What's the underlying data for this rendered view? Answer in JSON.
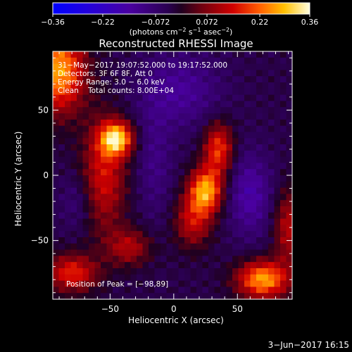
{
  "chart_data": {
    "type": "heatmap",
    "title": "Reconstructed RHESSI Image",
    "xlabel": "Heliocentric X (arcsec)",
    "ylabel": "Heliocentric Y (arcsec)",
    "xlim": [
      -95,
      93
    ],
    "ylim": [
      -95,
      95
    ],
    "x_ticks": [
      -50,
      0,
      50
    ],
    "y_ticks": [
      -50,
      0,
      50
    ],
    "x_tick_labels": [
      "−50",
      "0",
      "50"
    ],
    "y_tick_labels": [
      "−50",
      "0",
      "50"
    ],
    "colorbar": {
      "min": -0.36,
      "max": 0.36,
      "ticks": [
        -0.36,
        -0.22,
        -0.072,
        0.072,
        0.22,
        0.36
      ],
      "tick_labels": [
        "−0.36",
        "−0.22",
        "−0.072",
        "0.072",
        "0.22",
        "0.36"
      ],
      "units_prefix": "(photons cm",
      "units_sup1": "−2",
      "units_mid1": " s",
      "units_sup2": "−1",
      "units_mid2": " asec",
      "units_sup3": "−2",
      "units_suffix": ")"
    },
    "annotations": {
      "time_range": "31−May−2017 19:07:52.000 to 19:17:52.000",
      "detectors": "Detectors: 3F 6F 8F, Att 0",
      "energy": "Energy Range: 3.0 − 6.0 keV",
      "method": "Clean",
      "counts": "Total counts: 8.00E+04",
      "peak": "Position of Peak = [−98,89]"
    },
    "footer_date": "3−Jun−2017 16:15",
    "sources": [
      {
        "x": -90,
        "y": 80,
        "sx": 14,
        "sy": 22,
        "amp": 0.3
      },
      {
        "x": -45,
        "y": 28,
        "sx": 9,
        "sy": 9,
        "amp": 0.32
      },
      {
        "x": -55,
        "y": 0,
        "sx": 12,
        "sy": 30,
        "amp": 0.18
      },
      {
        "x": -80,
        "y": -75,
        "sx": 14,
        "sy": 10,
        "amp": 0.2
      },
      {
        "x": -35,
        "y": -55,
        "sx": 12,
        "sy": 10,
        "amp": 0.14
      },
      {
        "x": 25,
        "y": -12,
        "sx": 9,
        "sy": 12,
        "amp": 0.3
      },
      {
        "x": 35,
        "y": 20,
        "sx": 8,
        "sy": 14,
        "amp": 0.22
      },
      {
        "x": 15,
        "y": -35,
        "sx": 10,
        "sy": 14,
        "amp": 0.16
      },
      {
        "x": 70,
        "y": -80,
        "sx": 14,
        "sy": 10,
        "amp": 0.3
      },
      {
        "x": 90,
        "y": -40,
        "sx": 8,
        "sy": 20,
        "amp": 0.15
      },
      {
        "x": 5,
        "y": 65,
        "sx": 22,
        "sy": 20,
        "amp": -0.1
      },
      {
        "x": 60,
        "y": -15,
        "sx": 12,
        "sy": 22,
        "amp": -0.12
      },
      {
        "x": -15,
        "y": 10,
        "sx": 10,
        "sy": 30,
        "amp": -0.07
      },
      {
        "x": -75,
        "y": -20,
        "sx": 10,
        "sy": 15,
        "amp": -0.06
      }
    ],
    "baseline": -0.03
  }
}
